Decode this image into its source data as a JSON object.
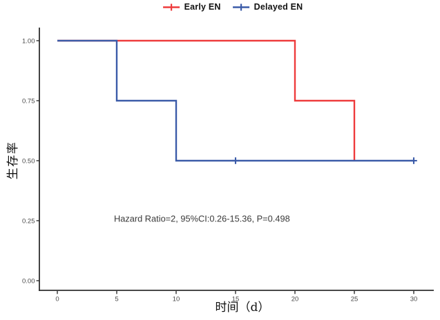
{
  "chart_data": {
    "type": "line",
    "variant": "kaplan-meier-step-survival",
    "title": "",
    "xlabel": "时间（d）",
    "ylabel": "生存率",
    "xlim": [
      0,
      30
    ],
    "ylim": [
      0,
      1
    ],
    "xticks": [
      0,
      5,
      10,
      15,
      20,
      25,
      30
    ],
    "ytick_labels": [
      "0.00",
      "0.25",
      "0.50",
      "0.75",
      "1.00"
    ],
    "grid": false,
    "legend_position": "top-center",
    "series": [
      {
        "name": "Early EN",
        "color": "#EE3B3C",
        "step_points": [
          [
            0,
            1.0
          ],
          [
            20,
            1.0
          ],
          [
            20,
            0.75
          ],
          [
            25,
            0.75
          ],
          [
            25,
            0.5
          ]
        ],
        "censor_marks": []
      },
      {
        "name": "Delayed EN",
        "color": "#3B5BA8",
        "step_points": [
          [
            0,
            1.0
          ],
          [
            5,
            1.0
          ],
          [
            5,
            0.75
          ],
          [
            10,
            0.75
          ],
          [
            10,
            0.5
          ],
          [
            30,
            0.5
          ]
        ],
        "censor_marks": [
          [
            15,
            0.5
          ],
          [
            30,
            0.5
          ]
        ]
      }
    ],
    "annotation": "Hazard Ratio=2, 95%CI:0.26-15.36, P=0.498"
  }
}
